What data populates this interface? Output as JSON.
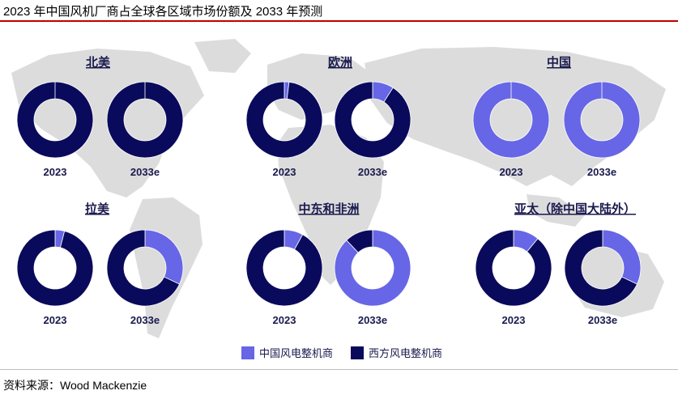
{
  "title": "2023 年中国风机厂商占全球各区域市场份额及 2033 年预测",
  "source": "资料来源：Wood Mackenzie",
  "colors": {
    "chinese": "#6666e6",
    "western": "#0a0a5c",
    "map": "#dcdcdc",
    "title_rule": "#c00000"
  },
  "legend": [
    {
      "label": "中国风电整机商",
      "color": "#6666e6"
    },
    {
      "label": "西方风电整机商",
      "color": "#0a0a5c"
    }
  ],
  "chart_data": {
    "type": "pie",
    "variant": "donut",
    "series_names": [
      "中国风电整机商",
      "西方风电整机商"
    ],
    "regions": [
      {
        "name": "北美",
        "years": [
          {
            "label": "2023",
            "chinese_share": 0.0
          },
          {
            "label": "2033e",
            "chinese_share": 0.0
          }
        ]
      },
      {
        "name": "欧洲",
        "years": [
          {
            "label": "2023",
            "chinese_share": 0.02
          },
          {
            "label": "2033e",
            "chinese_share": 0.09
          }
        ]
      },
      {
        "name": "中国",
        "years": [
          {
            "label": "2023",
            "chinese_share": 1.0
          },
          {
            "label": "2033e",
            "chinese_share": 1.0
          }
        ]
      },
      {
        "name": "拉美",
        "years": [
          {
            "label": "2023",
            "chinese_share": 0.04
          },
          {
            "label": "2033e",
            "chinese_share": 0.32
          }
        ]
      },
      {
        "name": "中东和非洲",
        "years": [
          {
            "label": "2023",
            "chinese_share": 0.08
          },
          {
            "label": "2033e",
            "chinese_share": 0.88
          }
        ]
      },
      {
        "name": "亚太（除中国大陆外）",
        "years": [
          {
            "label": "2023",
            "chinese_share": 0.11
          },
          {
            "label": "2033e",
            "chinese_share": 0.32
          }
        ]
      }
    ]
  }
}
